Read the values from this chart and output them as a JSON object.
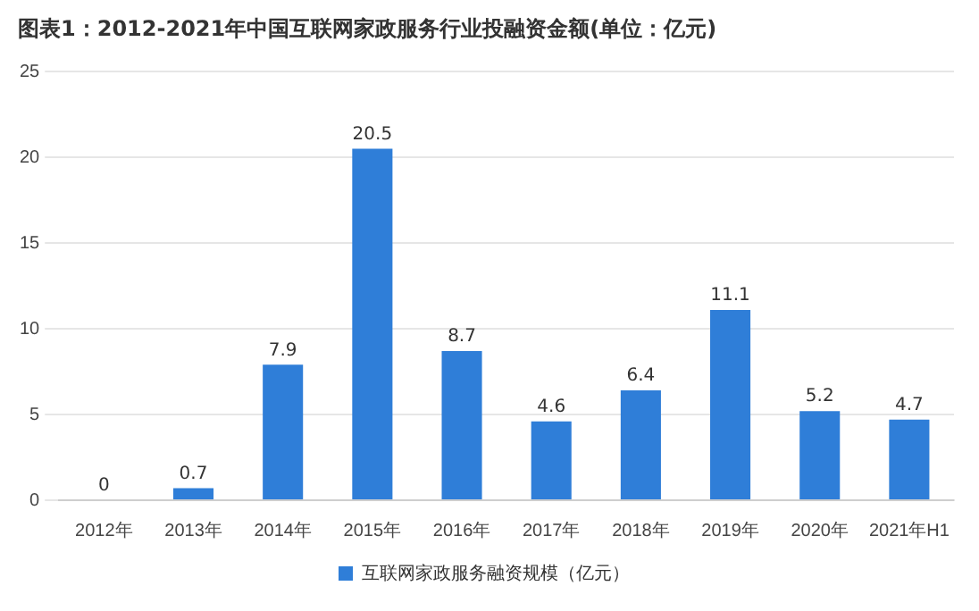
{
  "chart_data": {
    "type": "bar",
    "title": "图表1：2012-2021年中国互联网家政服务行业投融资金额(单位：亿元)",
    "categories": [
      "2012年",
      "2013年",
      "2014年",
      "2015年",
      "2016年",
      "2017年",
      "2018年",
      "2019年",
      "2020年",
      "2021年H1"
    ],
    "series": [
      {
        "name": "互联网家政服务融资规模（亿元）",
        "color": "#2f7ed8",
        "values": [
          0,
          0.7,
          7.9,
          20.5,
          8.7,
          4.6,
          6.4,
          11.1,
          5.2,
          4.7
        ]
      }
    ],
    "ylim": [
      0,
      25
    ],
    "yticks": [
      0,
      5,
      10,
      15,
      20,
      25
    ],
    "grid": "y",
    "legend": "bottom",
    "data_labels": true
  }
}
